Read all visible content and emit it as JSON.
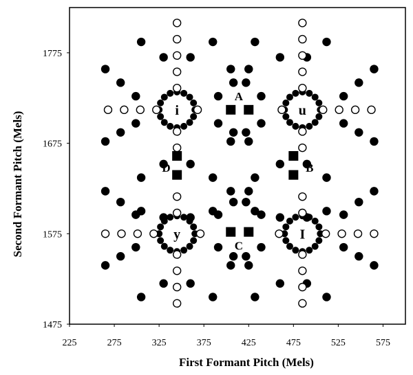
{
  "chart_data": {
    "type": "scatter",
    "title": "",
    "xlabel": "First Formant Pitch (Mels)",
    "ylabel": "Second Formant Pitch (Mels)",
    "xlim": [
      225,
      600
    ],
    "ylim": [
      1475,
      1825
    ],
    "x_ticks": [
      "225",
      "275",
      "325",
      "375",
      "425",
      "475",
      "525",
      "575"
    ],
    "y_ticks": [
      "1475",
      "1575",
      "1675",
      "1775"
    ],
    "grid": false,
    "vowel_centers": [
      {
        "label": "i",
        "x": 345,
        "y": 1712
      },
      {
        "label": "u",
        "x": 485,
        "y": 1712
      },
      {
        "label": "y",
        "x": 345,
        "y": 1575
      },
      {
        "label": "I",
        "x": 485,
        "y": 1575
      }
    ],
    "series": [
      {
        "marker": "filled-circle",
        "points": [
          [
            305,
            1787
          ],
          [
            330,
            1770
          ],
          [
            385,
            1787
          ],
          [
            360,
            1770
          ],
          [
            432,
            1787
          ],
          [
            460,
            1770
          ],
          [
            512,
            1787
          ],
          [
            490,
            1770
          ],
          [
            265,
            1757
          ],
          [
            282,
            1742
          ],
          [
            299,
            1727
          ],
          [
            425,
            1757
          ],
          [
            408,
            1742
          ],
          [
            391,
            1727
          ],
          [
            405,
            1757
          ],
          [
            422,
            1742
          ],
          [
            439,
            1727
          ],
          [
            565,
            1757
          ],
          [
            548,
            1742
          ],
          [
            531,
            1727
          ],
          [
            265,
            1677
          ],
          [
            282,
            1687
          ],
          [
            299,
            1697
          ],
          [
            425,
            1677
          ],
          [
            408,
            1687
          ],
          [
            391,
            1697
          ],
          [
            405,
            1677
          ],
          [
            422,
            1687
          ],
          [
            439,
            1697
          ],
          [
            565,
            1677
          ],
          [
            548,
            1687
          ],
          [
            531,
            1697
          ],
          [
            305,
            1637
          ],
          [
            330,
            1652
          ],
          [
            385,
            1637
          ],
          [
            360,
            1652
          ],
          [
            432,
            1637
          ],
          [
            460,
            1652
          ],
          [
            512,
            1637
          ],
          [
            490,
            1652
          ],
          [
            305,
            1600
          ],
          [
            330,
            1593
          ],
          [
            385,
            1600
          ],
          [
            360,
            1593
          ],
          [
            432,
            1600
          ],
          [
            460,
            1593
          ],
          [
            512,
            1600
          ],
          [
            490,
            1593
          ],
          [
            265,
            1622
          ],
          [
            282,
            1610
          ],
          [
            299,
            1596
          ],
          [
            425,
            1622
          ],
          [
            408,
            1610
          ],
          [
            391,
            1596
          ],
          [
            405,
            1622
          ],
          [
            422,
            1610
          ],
          [
            439,
            1596
          ],
          [
            565,
            1622
          ],
          [
            548,
            1610
          ],
          [
            531,
            1596
          ],
          [
            265,
            1540
          ],
          [
            282,
            1550
          ],
          [
            299,
            1560
          ],
          [
            425,
            1540
          ],
          [
            408,
            1550
          ],
          [
            391,
            1560
          ],
          [
            405,
            1540
          ],
          [
            422,
            1550
          ],
          [
            439,
            1560
          ],
          [
            565,
            1540
          ],
          [
            548,
            1550
          ],
          [
            531,
            1560
          ],
          [
            305,
            1505
          ],
          [
            330,
            1520
          ],
          [
            385,
            1505
          ],
          [
            360,
            1520
          ],
          [
            432,
            1505
          ],
          [
            460,
            1520
          ],
          [
            512,
            1505
          ],
          [
            490,
            1520
          ]
        ]
      },
      {
        "marker": "open-circle",
        "points": [
          [
            345,
            1808
          ],
          [
            345,
            1790
          ],
          [
            345,
            1772
          ],
          [
            345,
            1754
          ],
          [
            345,
            1736
          ],
          [
            345,
            1688
          ],
          [
            345,
            1670
          ],
          [
            345,
            1616
          ],
          [
            345,
            1598
          ],
          [
            345,
            1552
          ],
          [
            345,
            1534
          ],
          [
            345,
            1516
          ],
          [
            345,
            1498
          ],
          [
            485,
            1808
          ],
          [
            485,
            1790
          ],
          [
            485,
            1772
          ],
          [
            485,
            1754
          ],
          [
            485,
            1736
          ],
          [
            485,
            1688
          ],
          [
            485,
            1670
          ],
          [
            485,
            1616
          ],
          [
            485,
            1598
          ],
          [
            485,
            1552
          ],
          [
            485,
            1534
          ],
          [
            485,
            1516
          ],
          [
            485,
            1498
          ],
          [
            268,
            1712
          ],
          [
            286,
            1712
          ],
          [
            304,
            1712
          ],
          [
            322,
            1712
          ],
          [
            368,
            1712
          ],
          [
            462,
            1712
          ],
          [
            508,
            1712
          ],
          [
            526,
            1712
          ],
          [
            544,
            1712
          ],
          [
            562,
            1712
          ],
          [
            265,
            1575
          ],
          [
            283,
            1575
          ],
          [
            301,
            1575
          ],
          [
            319,
            1575
          ],
          [
            371,
            1575
          ],
          [
            459,
            1575
          ],
          [
            511,
            1575
          ],
          [
            529,
            1575
          ],
          [
            547,
            1575
          ],
          [
            565,
            1575
          ]
        ]
      },
      {
        "marker": "filled-square",
        "points": [
          [
            405,
            1712
          ],
          [
            425,
            1712
          ],
          [
            475,
            1661
          ],
          [
            475,
            1640
          ],
          [
            405,
            1577
          ],
          [
            425,
            1577
          ],
          [
            345,
            1661
          ],
          [
            345,
            1640
          ]
        ]
      }
    ],
    "region_labels": [
      {
        "label": "A",
        "x": 414,
        "y": 1727
      },
      {
        "label": "B",
        "x": 493,
        "y": 1648
      },
      {
        "label": "C",
        "x": 414,
        "y": 1562
      },
      {
        "label": "D",
        "x": 333,
        "y": 1648
      }
    ]
  }
}
